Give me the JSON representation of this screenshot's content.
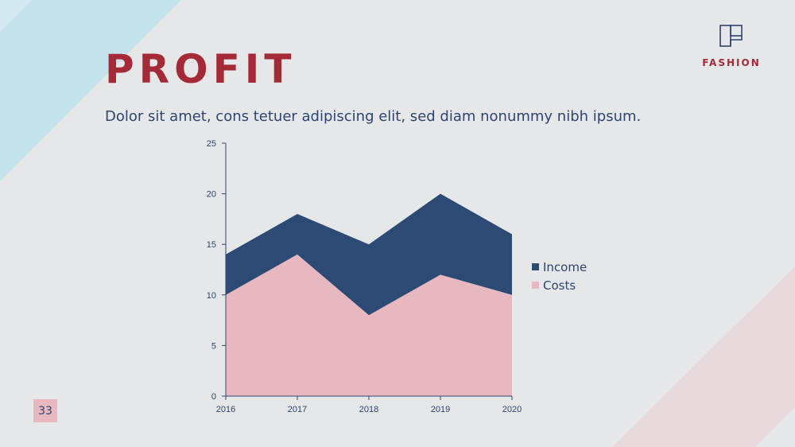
{
  "slide": {
    "title": "PROFIT",
    "subtitle": "Dolor sit amet, cons tetuer adipiscing elit, sed diam nonummy nibh ipsum.",
    "logo_text": "FASHION",
    "page_number": "33"
  },
  "colors": {
    "accent_red": "#a52a38",
    "navy": "#2d4570",
    "pink": "#e7b8c0",
    "background": "#e6e7e9",
    "deco_blue": "#c3e2ea",
    "deco_pink": "#e8d9dc"
  },
  "chart_data": {
    "type": "area",
    "stacked": true,
    "x": [
      "2016",
      "2017",
      "2018",
      "2019",
      "2020"
    ],
    "ylim": [
      0,
      25
    ],
    "yticks": [
      0,
      5,
      10,
      15,
      20,
      25
    ],
    "legend_position": "right",
    "grid": false,
    "series": [
      {
        "name": "Costs",
        "values": [
          10,
          14,
          8,
          12,
          10
        ],
        "color": "#e7b8c0"
      },
      {
        "name": "Income",
        "values": [
          4,
          4,
          7,
          8,
          6
        ],
        "color": "#2d4a75"
      }
    ],
    "legend_order": [
      "Income",
      "Costs"
    ]
  }
}
